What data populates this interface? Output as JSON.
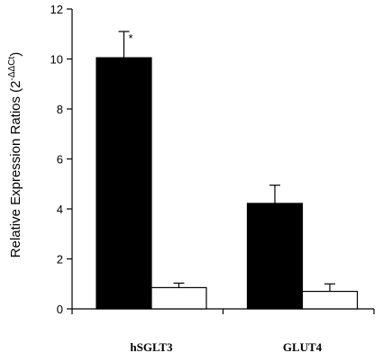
{
  "chart_data": {
    "type": "bar",
    "title": "",
    "xlabel": "",
    "ylabel": {
      "main": "Relative Expression Ratios (2",
      "sup": "-ΔΔCt",
      "tail": ")"
    },
    "ylim": [
      0,
      12
    ],
    "yticks": [
      0,
      2,
      4,
      6,
      8,
      10,
      12
    ],
    "categories": [
      "hSGLT3",
      "GLUT4"
    ],
    "series": [
      {
        "values": [
          10.05,
          4.22
        ],
        "errors": [
          1.05,
          0.73
        ],
        "fill": "#000000"
      },
      {
        "values": [
          0.85,
          0.7
        ],
        "errors": [
          0.18,
          0.3
        ],
        "fill": "#ffffff"
      }
    ],
    "annotations": [
      {
        "text": "*",
        "category": "hSGLT3",
        "series": 0
      }
    ],
    "grid": false,
    "legend": "none"
  }
}
